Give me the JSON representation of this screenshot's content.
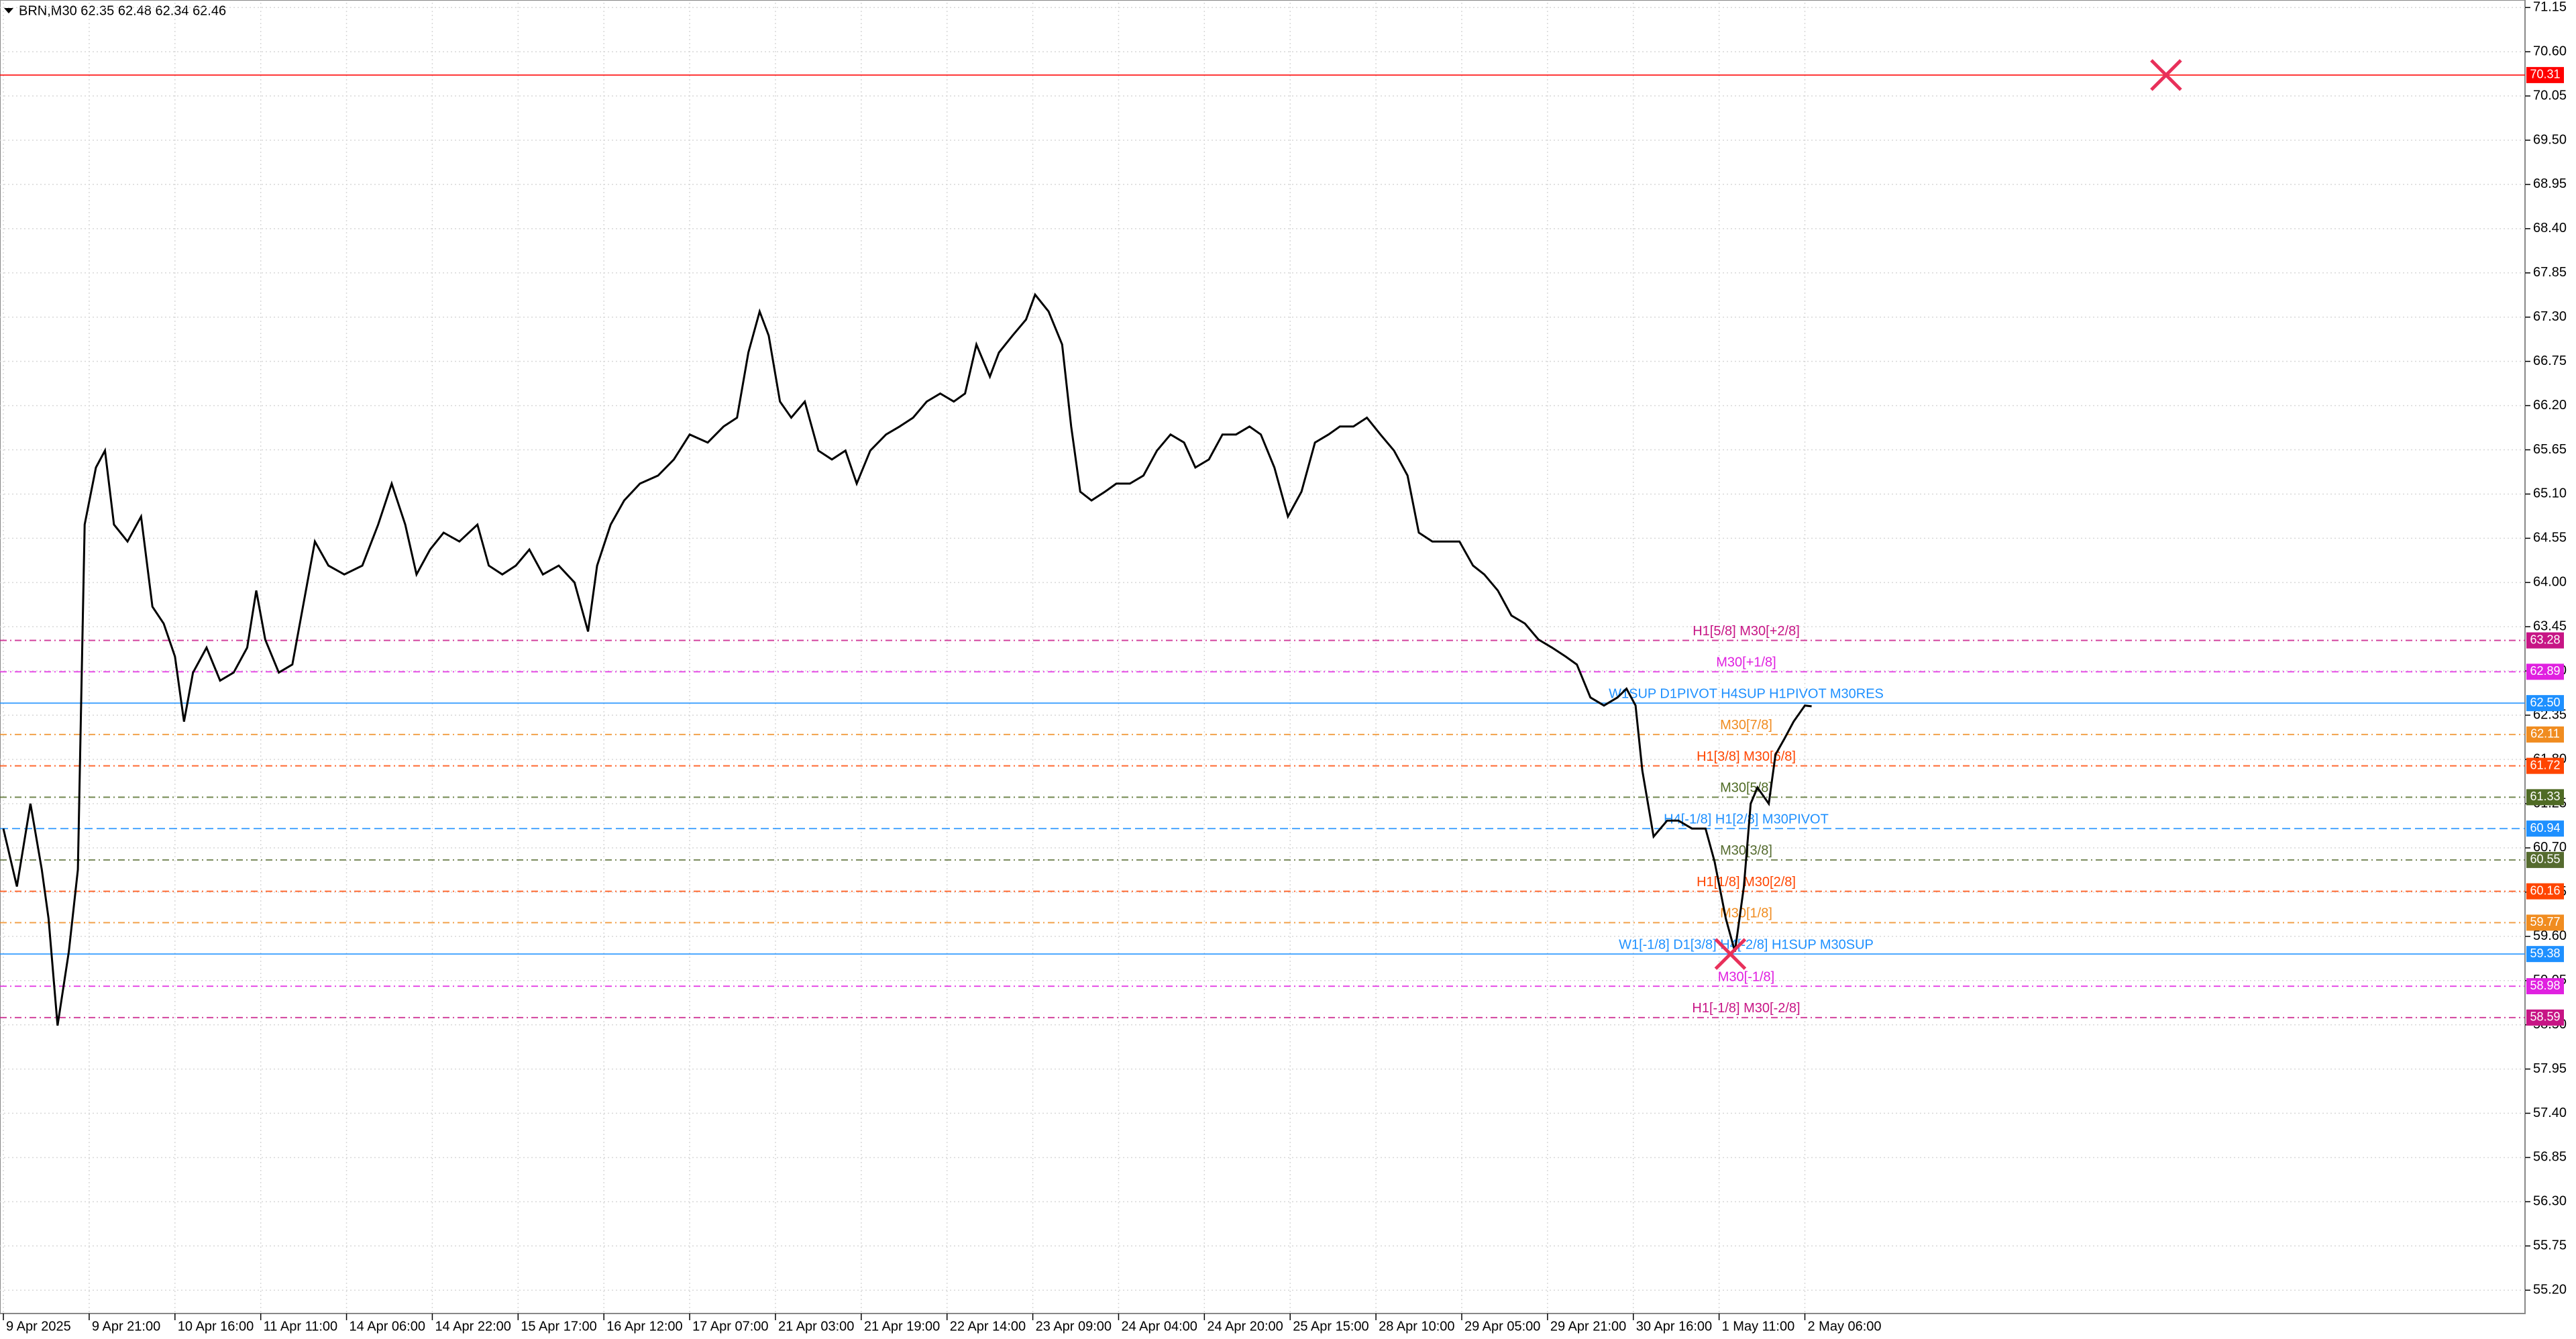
{
  "chart_data": {
    "type": "line",
    "title": "BRN,M30  62.35 62.48 62.34 62.46",
    "color": "#000000",
    "grid": true,
    "xlim": [
      -1.5,
      1117
    ],
    "ylim": [
      54.91,
      71.21
    ],
    "xticks": [
      {
        "value": 0,
        "label": "9 Apr 2025"
      },
      {
        "value": 38,
        "label": "9 Apr 21:00"
      },
      {
        "value": 76,
        "label": "10 Apr 16:00"
      },
      {
        "value": 114,
        "label": "11 Apr 11:00"
      },
      {
        "value": 152,
        "label": "14 Apr 06:00"
      },
      {
        "value": 190,
        "label": "14 Apr 22:00"
      },
      {
        "value": 228,
        "label": "15 Apr 17:00"
      },
      {
        "value": 266,
        "label": "16 Apr 12:00"
      },
      {
        "value": 304,
        "label": "17 Apr 07:00"
      },
      {
        "value": 342,
        "label": "21 Apr 03:00"
      },
      {
        "value": 380,
        "label": "21 Apr 19:00"
      },
      {
        "value": 418,
        "label": "22 Apr 14:00"
      },
      {
        "value": 456,
        "label": "23 Apr 09:00"
      },
      {
        "value": 494,
        "label": "24 Apr 04:00"
      },
      {
        "value": 532,
        "label": "24 Apr 20:00"
      },
      {
        "value": 570,
        "label": "25 Apr 15:00"
      },
      {
        "value": 608,
        "label": "28 Apr 10:00"
      },
      {
        "value": 646,
        "label": "29 Apr 05:00"
      },
      {
        "value": 684,
        "label": "29 Apr 21:00"
      },
      {
        "value": 722,
        "label": "30 Apr 16:00"
      },
      {
        "value": 760,
        "label": "1 May 11:00"
      },
      {
        "value": 798,
        "label": "2 May 06:00"
      }
    ],
    "yticks": [
      {
        "value": 55.2,
        "label": "55.20"
      },
      {
        "value": 55.75,
        "label": "55.75"
      },
      {
        "value": 56.3,
        "label": "56.30"
      },
      {
        "value": 56.85,
        "label": "56.85"
      },
      {
        "value": 57.4,
        "label": "57.40"
      },
      {
        "value": 57.95,
        "label": "57.95"
      },
      {
        "value": 58.5,
        "label": "58.50"
      },
      {
        "value": 59.05,
        "label": "59.05"
      },
      {
        "value": 59.6,
        "label": "59.60"
      },
      {
        "value": 60.15,
        "label": "60.15"
      },
      {
        "value": 60.7,
        "label": "60.70"
      },
      {
        "value": 61.25,
        "label": "61.25"
      },
      {
        "value": 61.8,
        "label": "61.80"
      },
      {
        "value": 62.35,
        "label": "62.35"
      },
      {
        "value": 62.9,
        "label": "62.90"
      },
      {
        "value": 63.45,
        "label": "63.45"
      },
      {
        "value": 64.0,
        "label": "64.00"
      },
      {
        "value": 64.55,
        "label": "64.55"
      },
      {
        "value": 65.1,
        "label": "65.10"
      },
      {
        "value": 65.65,
        "label": "65.65"
      },
      {
        "value": 66.2,
        "label": "66.20"
      },
      {
        "value": 66.75,
        "label": "66.75"
      },
      {
        "value": 67.3,
        "label": "67.30"
      },
      {
        "value": 67.85,
        "label": "67.85"
      },
      {
        "value": 68.4,
        "label": "68.40"
      },
      {
        "value": 68.95,
        "label": "68.95"
      },
      {
        "value": 69.5,
        "label": "69.50"
      },
      {
        "value": 70.05,
        "label": "70.05"
      },
      {
        "value": 70.6,
        "label": "70.60"
      },
      {
        "value": 71.15,
        "label": "71.15"
      }
    ],
    "x": [
      0,
      6,
      12,
      17,
      20,
      24,
      29,
      33,
      36,
      41,
      45,
      49,
      55,
      61,
      66,
      71,
      76,
      80,
      84,
      90,
      96,
      102,
      108,
      112,
      116,
      122,
      128,
      134,
      138,
      144,
      151,
      159,
      166,
      172,
      178,
      183,
      189,
      195,
      202,
      210,
      215,
      221,
      227,
      233,
      239,
      246,
      253,
      259,
      263,
      269,
      275,
      282,
      290,
      297,
      304,
      312,
      319,
      325,
      330,
      335,
      339,
      344,
      349,
      355,
      361,
      367,
      373,
      378,
      384,
      391,
      397,
      403,
      409,
      415,
      421,
      426,
      431,
      437,
      441,
      447,
      453,
      457,
      463,
      469,
      473,
      477,
      482,
      488,
      493,
      499,
      505,
      511,
      517,
      523,
      528,
      534,
      540,
      546,
      552,
      557,
      563,
      569,
      575,
      581,
      587,
      592,
      598,
      604,
      610,
      616,
      622,
      627,
      633,
      639,
      645,
      651,
      656,
      662,
      668,
      674,
      680,
      686,
      692,
      697,
      703,
      709,
      715,
      719,
      723,
      726,
      731,
      737,
      742,
      748,
      754,
      758,
      763,
      767,
      771,
      774,
      777,
      782,
      785,
      789,
      793,
      798,
      801
    ],
    "values": [
      60.94,
      60.22,
      61.25,
      60.43,
      59.82,
      58.49,
      59.41,
      60.43,
      64.72,
      65.43,
      65.64,
      64.72,
      64.51,
      64.82,
      63.7,
      63.49,
      63.08,
      62.27,
      62.88,
      63.19,
      62.78,
      62.88,
      63.19,
      63.9,
      63.29,
      62.88,
      62.98,
      63.9,
      64.51,
      64.21,
      64.1,
      64.21,
      64.72,
      65.23,
      64.72,
      64.1,
      64.41,
      64.62,
      64.51,
      64.72,
      64.21,
      64.1,
      64.21,
      64.41,
      64.1,
      64.21,
      64.0,
      63.39,
      64.21,
      64.72,
      65.02,
      65.23,
      65.33,
      65.53,
      65.84,
      65.74,
      65.94,
      66.05,
      66.86,
      67.37,
      67.07,
      66.25,
      66.05,
      66.25,
      65.64,
      65.53,
      65.64,
      65.23,
      65.64,
      65.84,
      65.94,
      66.05,
      66.25,
      66.35,
      66.25,
      66.35,
      66.96,
      66.56,
      66.86,
      67.07,
      67.27,
      67.58,
      67.37,
      66.96,
      65.94,
      65.13,
      65.02,
      65.13,
      65.23,
      65.23,
      65.33,
      65.64,
      65.84,
      65.74,
      65.43,
      65.53,
      65.84,
      65.84,
      65.94,
      65.84,
      65.43,
      64.82,
      65.13,
      65.74,
      65.84,
      65.94,
      65.94,
      66.05,
      65.84,
      65.64,
      65.33,
      64.62,
      64.51,
      64.51,
      64.51,
      64.21,
      64.1,
      63.9,
      63.59,
      63.49,
      63.29,
      63.19,
      63.08,
      62.98,
      62.57,
      62.47,
      62.57,
      62.68,
      62.47,
      61.66,
      60.84,
      61.04,
      61.04,
      60.94,
      60.94,
      60.53,
      59.82,
      59.41,
      60.22,
      61.25,
      61.45,
      61.25,
      61.86,
      62.06,
      62.27,
      62.47,
      62.46
    ],
    "levels": [
      {
        "value": 70.31,
        "value_label": "70.31",
        "color": "#ff0000",
        "dash": "solid"
      },
      {
        "value": 63.28,
        "value_label": "63.28",
        "label": "H1[5/8] M30[+2/8]",
        "color": "#c71585",
        "dash": "dashdot"
      },
      {
        "value": 62.89,
        "value_label": "62.89",
        "label": "M30[+1/8]",
        "color": "#e020e0",
        "dash": "dashdot"
      },
      {
        "value": 62.5,
        "value_label": "62.50",
        "label": "W1SUP D1PIVOT H4SUP H1PIVOT M30RES",
        "color": "#1e90ff",
        "dash": "solid"
      },
      {
        "value": 62.11,
        "value_label": "62.11",
        "label": "M30[7/8]",
        "color": "#f08c20",
        "dash": "dashdot"
      },
      {
        "value": 61.72,
        "value_label": "61.72",
        "label": "H1[3/8] M30[6/8]",
        "color": "#ff4500",
        "dash": "dashdot"
      },
      {
        "value": 61.33,
        "value_label": "61.33",
        "label": "M30[5/8]",
        "color": "#4f6b25",
        "dash": "dashdot"
      },
      {
        "value": 60.94,
        "value_label": "60.94",
        "label": "H4[-1/8] H1[2/8] M30PIVOT",
        "color": "#1e90ff",
        "dash": "dashed"
      },
      {
        "value": 60.55,
        "value_label": "60.55",
        "label": "M30[3/8]",
        "color": "#556b2f",
        "dash": "dashdot"
      },
      {
        "value": 60.16,
        "value_label": "60.16",
        "label": "H1[1/8] M30[2/8]",
        "color": "#ff4500",
        "dash": "dashdot"
      },
      {
        "value": 59.77,
        "value_label": "59.77",
        "label": "M30[1/8]",
        "color": "#f08c20",
        "dash": "dashdot"
      },
      {
        "value": 59.38,
        "value_label": "59.38",
        "label": "W1[-1/8] D1[3/8] H4[-2/8] H1SUP M30SUP",
        "color": "#1e90ff",
        "dash": "solid"
      },
      {
        "value": 58.98,
        "value_label": "58.98",
        "label": "M30[-1/8]",
        "color": "#e020e0",
        "dash": "dashdot"
      },
      {
        "value": 58.59,
        "value_label": "58.59",
        "label": "H1[-1/8] M30[-2/8]",
        "color": "#c71585",
        "dash": "dashdot"
      }
    ],
    "markers": [
      {
        "x": 958,
        "y": 70.31,
        "color": "#e8305a"
      },
      {
        "x": 765,
        "y": 59.38,
        "color": "#e8305a"
      }
    ]
  }
}
